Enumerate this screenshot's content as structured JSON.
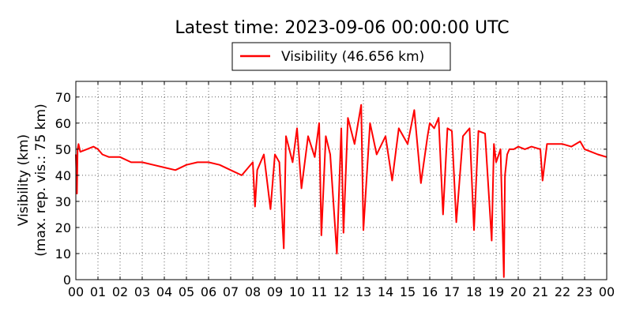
{
  "chart_data": {
    "type": "line",
    "title": "Latest time: 2023-09-06 00:00:00 UTC",
    "xlabel": "",
    "ylabel_lines": [
      "Visibility (km)",
      "(max. rep. vis.: 75 km)"
    ],
    "xlim": [
      0,
      24
    ],
    "ylim": [
      0,
      76
    ],
    "x_ticks": [
      {
        "value": 0,
        "label": "00"
      },
      {
        "value": 1,
        "label": "01"
      },
      {
        "value": 2,
        "label": "02"
      },
      {
        "value": 3,
        "label": "03"
      },
      {
        "value": 4,
        "label": "04"
      },
      {
        "value": 5,
        "label": "05"
      },
      {
        "value": 6,
        "label": "06"
      },
      {
        "value": 7,
        "label": "07"
      },
      {
        "value": 8,
        "label": "08"
      },
      {
        "value": 9,
        "label": "09"
      },
      {
        "value": 10,
        "label": "10"
      },
      {
        "value": 11,
        "label": "11"
      },
      {
        "value": 12,
        "label": "12"
      },
      {
        "value": 13,
        "label": "13"
      },
      {
        "value": 14,
        "label": "14"
      },
      {
        "value": 15,
        "label": "15"
      },
      {
        "value": 16,
        "label": "16"
      },
      {
        "value": 17,
        "label": "17"
      },
      {
        "value": 18,
        "label": "18"
      },
      {
        "value": 19,
        "label": "19"
      },
      {
        "value": 20,
        "label": "20"
      },
      {
        "value": 21,
        "label": "21"
      },
      {
        "value": 22,
        "label": "22"
      },
      {
        "value": 23,
        "label": "23"
      },
      {
        "value": 24,
        "label": "00"
      }
    ],
    "y_ticks": [
      0,
      10,
      20,
      30,
      40,
      50,
      60,
      70
    ],
    "grid": true,
    "grid_style": "dotted",
    "legend_position": "top-center",
    "series": [
      {
        "name": "Visibility (46.656 km)",
        "color": "#ff0000",
        "x": [
          0,
          0.05,
          0.08,
          0.12,
          0.2,
          0.5,
          0.8,
          1.0,
          1.2,
          1.5,
          2.0,
          2.5,
          3.0,
          3.5,
          4.0,
          4.5,
          5.0,
          5.5,
          6.0,
          6.5,
          7.0,
          7.5,
          8.0,
          8.1,
          8.2,
          8.5,
          8.8,
          9.0,
          9.2,
          9.4,
          9.5,
          9.8,
          10.0,
          10.2,
          10.5,
          10.8,
          11.0,
          11.1,
          11.3,
          11.5,
          11.8,
          12.0,
          12.1,
          12.3,
          12.6,
          12.9,
          13.0,
          13.3,
          13.6,
          14.0,
          14.3,
          14.6,
          15.0,
          15.3,
          15.6,
          15.9,
          16.0,
          16.2,
          16.4,
          16.6,
          16.8,
          17.0,
          17.2,
          17.5,
          17.8,
          18.0,
          18.2,
          18.5,
          18.8,
          18.9,
          19.0,
          19.2,
          19.35,
          19.4,
          19.5,
          19.6,
          19.8,
          20.0,
          20.3,
          20.6,
          21.0,
          21.1,
          21.3,
          21.6,
          22.0,
          22.4,
          22.8,
          23.0,
          23.3,
          23.6,
          24.0
        ],
        "y": [
          48,
          33,
          50,
          52,
          49,
          50,
          51,
          50,
          48,
          47,
          47,
          45,
          45,
          44,
          43,
          42,
          44,
          45,
          45,
          44,
          42,
          40,
          45,
          28,
          42,
          48,
          27,
          48,
          45,
          12,
          55,
          45,
          58,
          35,
          55,
          47,
          60,
          17,
          55,
          48,
          10,
          58,
          18,
          62,
          52,
          67,
          19,
          60,
          48,
          55,
          38,
          58,
          52,
          65,
          37,
          55,
          60,
          58,
          62,
          25,
          58,
          57,
          22,
          55,
          58,
          19,
          57,
          56,
          15,
          52,
          45,
          50,
          1,
          40,
          48,
          50,
          50,
          51,
          50,
          51,
          50,
          38,
          52,
          52,
          52,
          51,
          53,
          50,
          49,
          48,
          47
        ]
      }
    ]
  }
}
